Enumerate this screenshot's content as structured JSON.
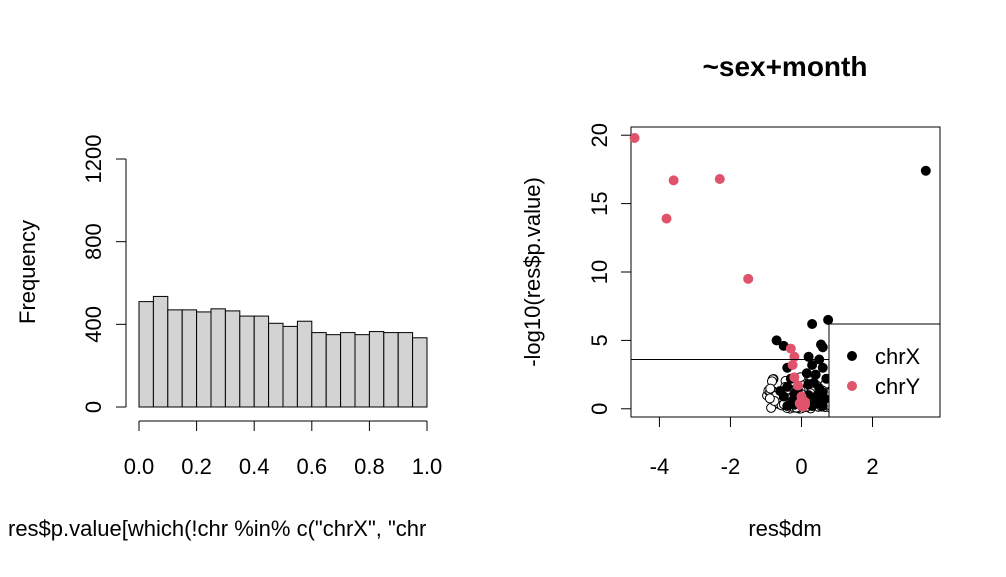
{
  "chart_data": [
    {
      "type": "bar",
      "title": "",
      "xlabel": "res$p.value[which(!chr %in% c(\"chrX\", \"chr",
      "ylabel": "Frequency",
      "xlim": [
        0,
        1
      ],
      "ylim": [
        0,
        1200
      ],
      "bin_width": 0.05,
      "bin_starts": [
        0.0,
        0.05,
        0.1,
        0.15,
        0.2,
        0.25,
        0.3,
        0.35,
        0.4,
        0.45,
        0.5,
        0.55,
        0.6,
        0.65,
        0.7,
        0.75,
        0.8,
        0.85,
        0.9,
        0.95
      ],
      "values": [
        510,
        535,
        470,
        470,
        460,
        475,
        465,
        440,
        440,
        405,
        390,
        415,
        360,
        350,
        360,
        350,
        365,
        360,
        360,
        335
      ],
      "x_ticks": [
        "0.0",
        "0.2",
        "0.4",
        "0.6",
        "0.8",
        "1.0"
      ],
      "y_ticks": [
        "0",
        "400",
        "800",
        "1200"
      ],
      "bar_color": "#d3d3d3"
    },
    {
      "type": "scatter",
      "title": "~sex+month",
      "xlabel": "res$dm",
      "ylabel": "-log10(res$p.value)",
      "xlim": [
        -4.8,
        3.9
      ],
      "ylim": [
        -0.6,
        20.6
      ],
      "x_ticks": [
        "-4",
        "-2",
        "0",
        "2"
      ],
      "y_ticks": [
        "0",
        "5",
        "10",
        "15",
        "20"
      ],
      "hline_y": 3.6,
      "series": [
        {
          "name": "chrX",
          "color": "#000000",
          "points": [
            [
              3.5,
              17.4
            ],
            [
              0.75,
              6.5
            ],
            [
              0.3,
              6.2
            ],
            [
              0.55,
              4.7
            ],
            [
              0.6,
              4.5
            ],
            [
              -0.7,
              5.0
            ],
            [
              -0.5,
              4.6
            ],
            [
              0.5,
              3.6
            ],
            [
              0.3,
              3.2
            ],
            [
              0.6,
              3.0
            ],
            [
              -0.4,
              3.0
            ],
            [
              0.4,
              2.5
            ],
            [
              0.7,
              2.2
            ],
            [
              -0.3,
              2.2
            ],
            [
              0.2,
              1.8
            ],
            [
              0.5,
              1.5
            ],
            [
              -0.4,
              1.6
            ],
            [
              0.6,
              1.2
            ],
            [
              0.2,
              1.0
            ],
            [
              -0.2,
              1.1
            ],
            [
              0.4,
              0.8
            ],
            [
              -0.5,
              0.9
            ],
            [
              0.1,
              0.5
            ],
            [
              0.5,
              0.4
            ],
            [
              -0.2,
              0.3
            ],
            [
              0.3,
              0.2
            ],
            [
              0.6,
              0.2
            ],
            [
              -0.4,
              0.2
            ],
            [
              0.15,
              2.6
            ],
            [
              -0.1,
              1.4
            ],
            [
              0.35,
              1.9
            ],
            [
              -0.25,
              0.6
            ],
            [
              0.45,
              1.0
            ],
            [
              0.2,
              3.8
            ],
            [
              -0.6,
              1.3
            ],
            [
              0.65,
              0.7
            ]
          ]
        },
        {
          "name": "chrY",
          "color": "#df536b",
          "points": [
            [
              -4.7,
              19.8
            ],
            [
              -3.6,
              16.7
            ],
            [
              -2.3,
              16.8
            ],
            [
              -3.8,
              13.9
            ],
            [
              -1.5,
              9.5
            ],
            [
              -0.3,
              4.4
            ],
            [
              -0.2,
              3.8
            ],
            [
              -0.25,
              3.2
            ],
            [
              -0.2,
              2.3
            ],
            [
              -0.1,
              1.7
            ],
            [
              0.0,
              0.9
            ],
            [
              0.05,
              0.6
            ],
            [
              0.1,
              0.5
            ],
            [
              -0.05,
              0.4
            ],
            [
              0.1,
              0.3
            ],
            [
              0.0,
              0.2
            ],
            [
              0.05,
              0.15
            ]
          ]
        }
      ],
      "legend": {
        "position": "right",
        "entries": [
          {
            "label": "chrX",
            "color": "#000000"
          },
          {
            "label": "chrY",
            "color": "#df536b"
          }
        ]
      }
    }
  ]
}
